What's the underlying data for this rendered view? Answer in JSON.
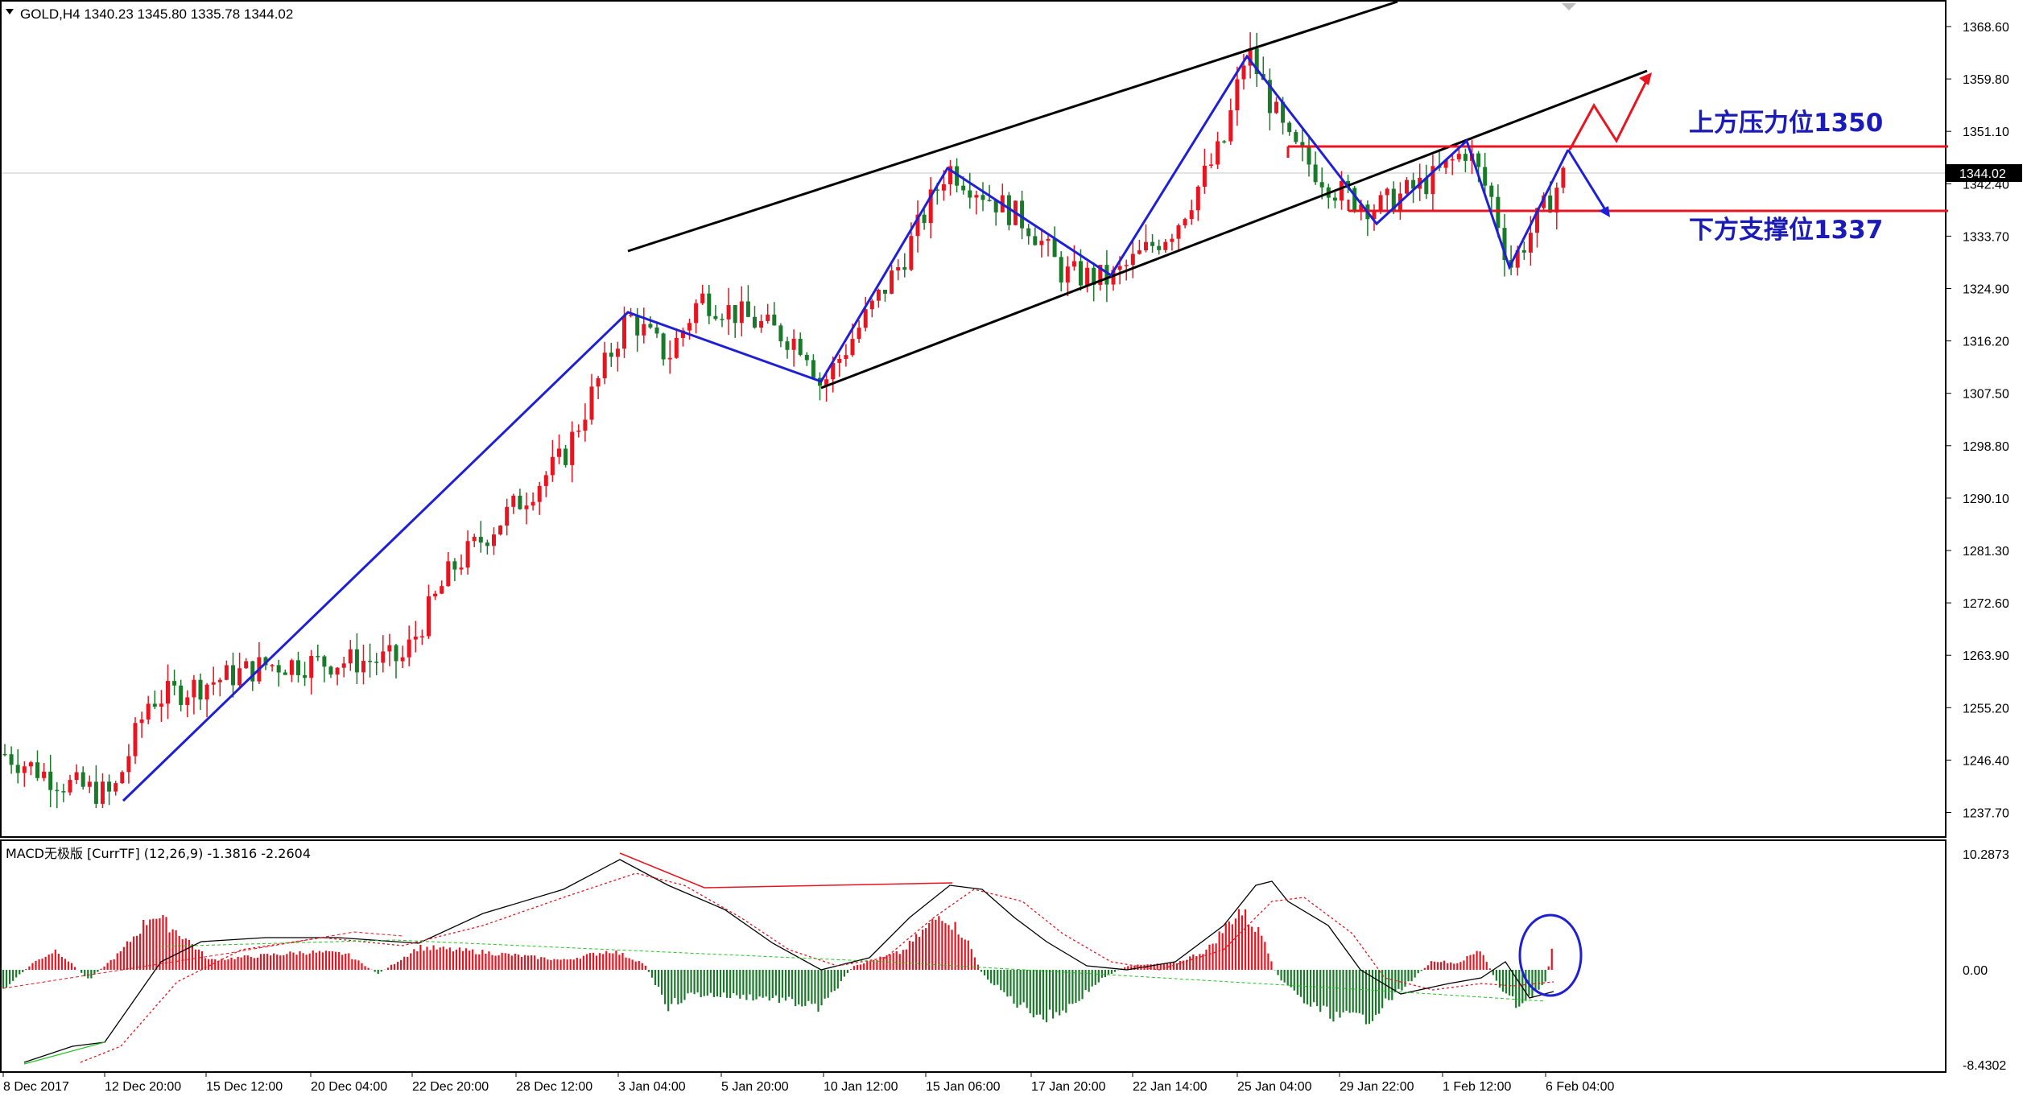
{
  "window": {
    "symbol_header": "GOLD,H4  1340.23 1345.80 1335.78 1344.02",
    "collapse_icon": "triangle-down-icon"
  },
  "annotations": {
    "resistance": "上方压力位1350",
    "support": "下方支撑位1337"
  },
  "colors": {
    "bull": "#e8141f",
    "bear": "#1a7a2a",
    "trend_blue": "#1f1fd6",
    "channel": "#000000",
    "level_red": "#e8141f",
    "annotation_blue": "#1b1bb8",
    "macd_signal": "#e8141f",
    "macd_main": "#000000",
    "divergence_red": "#e8141f",
    "divergence_green": "#22c422"
  },
  "price_axis": {
    "labels": [
      "1368.60",
      "1359.80",
      "1351.10",
      "1342.40",
      "1333.70",
      "1324.90",
      "1316.20",
      "1307.50",
      "1298.80",
      "1290.10",
      "1281.30",
      "1272.60",
      "1263.90",
      "1255.20",
      "1246.40",
      "1237.70"
    ],
    "current_price": "1344.02"
  },
  "macd_panel": {
    "label": "MACD无极版 [CurrTF] (12,26,9) -1.3816 -2.2604",
    "axis_labels": [
      "10.2873",
      "0.00",
      "-8.4302"
    ]
  },
  "time_axis": {
    "labels": [
      "8 Dec 2017",
      "12 Dec 20:00",
      "15 Dec 12:00",
      "20 Dec 04:00",
      "22 Dec 20:00",
      "28 Dec 12:00",
      "3 Jan 04:00",
      "5 Jan 20:00",
      "10 Jan 12:00",
      "15 Jan 06:00",
      "17 Jan 20:00",
      "22 Jan 14:00",
      "25 Jan 04:00",
      "29 Jan 22:00",
      "1 Feb 12:00",
      "6 Feb 04:00"
    ]
  },
  "chart_data": {
    "type": "candlestick",
    "symbol": "GOLD",
    "timeframe": "H4",
    "last_bar": {
      "open": 1340.23,
      "high": 1345.8,
      "low": 1335.78,
      "close": 1344.02
    },
    "price_ylim": [
      1233.0,
      1374.0
    ],
    "levels": {
      "resistance": 1350,
      "support": 1337
    },
    "zigzag_points": [
      {
        "x_label": "12 Dec 20:00",
        "price": 1239.5
      },
      {
        "x_label": "3 Jan 04:00",
        "price": 1321.0
      },
      {
        "x_label": "10 Jan 12:00",
        "price": 1309.5
      },
      {
        "x_label": "15 Jan 06:00",
        "price": 1345.5
      },
      {
        "x_label": "17 Jan 20:00",
        "price": 1327.0
      },
      {
        "x_label": "25 Jan 04:00",
        "price": 1366.0
      },
      {
        "x_label": "29 Jan 22:00",
        "price": 1339.0
      },
      {
        "x_label": "1 Feb 12:00",
        "price": 1349.0
      },
      {
        "x_label": "1 Feb 12:00+",
        "price": 1329.0
      },
      {
        "x_label": "6 Feb 04:00",
        "price": 1348.0
      }
    ],
    "macd": {
      "main": -1.3816,
      "signal": -2.2604,
      "ylim": [
        -8.4302,
        10.2873
      ]
    }
  }
}
